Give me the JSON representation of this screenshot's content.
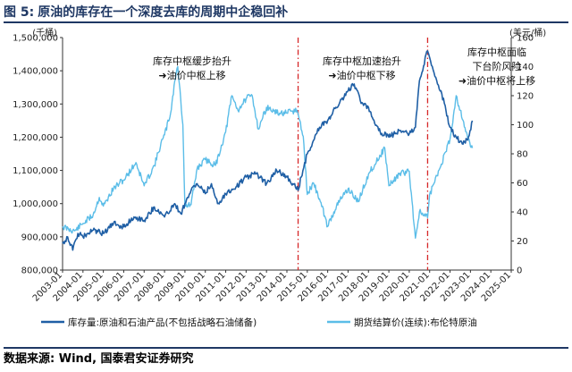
{
  "figure": {
    "number_label": "图 5:",
    "title": "原油的库存在一个深度去库的周期中企稳回补",
    "source": "数据来源: Wind, 国泰君安证券研究"
  },
  "chart_data": {
    "type": "line",
    "title": "原油的库存在一个深度去库的周期中企稳回补",
    "left_unit": "(千桶)",
    "right_unit": "(美元/桶)",
    "left_axis": {
      "ylim": [
        800000,
        1500000
      ],
      "ticks": [
        "800,000",
        "900,000",
        "1,000,000",
        "1,100,000",
        "1,200,000",
        "1,300,000",
        "1,400,000",
        "1,500,000"
      ],
      "tick_values": [
        800000,
        900000,
        1000000,
        1100000,
        1200000,
        1300000,
        1400000,
        1500000
      ]
    },
    "right_axis": {
      "ylim": [
        0,
        160
      ],
      "ticks": [
        "0",
        "20",
        "40",
        "60",
        "80",
        "100",
        "120",
        "140",
        "160"
      ],
      "tick_values": [
        0,
        20,
        40,
        60,
        80,
        100,
        120,
        140,
        160
      ]
    },
    "x_axis": {
      "xlim": [
        2003.0,
        2025.0
      ],
      "ticks": [
        "2003-01",
        "2004-01",
        "2005-01",
        "2006-01",
        "2007-01",
        "2008-01",
        "2009-01",
        "2010-01",
        "2011-01",
        "2012-01",
        "2013-01",
        "2014-01",
        "2015-01",
        "2016-01",
        "2017-01",
        "2018-01",
        "2019-01",
        "2020-01",
        "2021-01",
        "2022-01",
        "2023-01",
        "2024-01",
        "2025-01"
      ]
    },
    "grid": false,
    "legend_placement": "bottom",
    "colors": {
      "inventory": "#1f5fa5",
      "price": "#5bbde8",
      "divider": "#d62728"
    },
    "series": [
      {
        "name": "库存量:原油和石油产品(不包括战略石油储备)",
        "axis": "left",
        "x": [
          2003.0,
          2003.25,
          2003.5,
          2003.75,
          2004.0,
          2004.5,
          2005.0,
          2005.5,
          2006.0,
          2006.5,
          2007.0,
          2007.5,
          2008.0,
          2008.5,
          2008.8,
          2009.0,
          2009.3,
          2009.6,
          2010.0,
          2010.3,
          2010.6,
          2011.0,
          2011.5,
          2012.0,
          2012.5,
          2013.0,
          2013.5,
          2014.0,
          2014.3,
          2014.55,
          2014.7,
          2015.0,
          2015.3,
          2015.6,
          2016.0,
          2016.4,
          2016.8,
          2017.0,
          2017.3,
          2017.6,
          2018.0,
          2018.5,
          2019.0,
          2019.5,
          2020.0,
          2020.3,
          2020.5,
          2020.9,
          2021.0,
          2021.3,
          2021.6,
          2021.8,
          2022.0,
          2022.3,
          2022.6,
          2022.9,
          2023.1
        ],
        "values": [
          880000,
          900000,
          860000,
          910000,
          900000,
          920000,
          910000,
          940000,
          930000,
          960000,
          950000,
          990000,
          960000,
          1000000,
          970000,
          1000000,
          1040000,
          1060000,
          1030000,
          1060000,
          1000000,
          1030000,
          1050000,
          1080000,
          1090000,
          1060000,
          1100000,
          1080000,
          1060000,
          1040000,
          1080000,
          1150000,
          1190000,
          1230000,
          1250000,
          1290000,
          1320000,
          1340000,
          1360000,
          1310000,
          1290000,
          1220000,
          1200000,
          1220000,
          1210000,
          1230000,
          1370000,
          1460000,
          1440000,
          1380000,
          1330000,
          1280000,
          1230000,
          1200000,
          1180000,
          1200000,
          1250000
        ]
      },
      {
        "name": "期货结算价(连续):布伦特原油",
        "axis": "right",
        "x": [
          2003.0,
          2003.3,
          2003.6,
          2004.0,
          2004.5,
          2004.8,
          2005.0,
          2005.5,
          2005.8,
          2006.0,
          2006.6,
          2007.0,
          2007.5,
          2007.9,
          2008.0,
          2008.3,
          2008.5,
          2008.65,
          2008.9,
          2009.0,
          2009.3,
          2009.6,
          2010.0,
          2010.5,
          2011.0,
          2011.3,
          2011.6,
          2012.0,
          2012.3,
          2012.6,
          2013.0,
          2013.5,
          2014.0,
          2014.5,
          2014.8,
          2015.0,
          2015.3,
          2015.6,
          2016.0,
          2016.3,
          2016.6,
          2017.0,
          2017.5,
          2018.0,
          2018.8,
          2019.0,
          2019.5,
          2020.0,
          2020.3,
          2020.5,
          2020.9,
          2021.0,
          2021.5,
          2022.0,
          2022.3,
          2022.5,
          2022.8,
          2023.0,
          2023.1
        ],
        "values": [
          30,
          28,
          27,
          32,
          38,
          50,
          44,
          56,
          60,
          62,
          74,
          58,
          72,
          90,
          93,
          108,
          130,
          140,
          100,
          44,
          45,
          70,
          76,
          72,
          95,
          120,
          110,
          118,
          120,
          97,
          112,
          108,
          108,
          110,
          92,
          52,
          60,
          49,
          30,
          40,
          48,
          56,
          47,
          66,
          84,
          58,
          66,
          68,
          22,
          40,
          36,
          52,
          70,
          90,
          120,
          110,
          95,
          85,
          84
        ]
      }
    ],
    "annotations": [
      {
        "lines": [
          "库存中枢缓步抬升",
          "➜油价中枢上移"
        ]
      },
      {
        "lines": [
          "库存中枢加速抬升",
          "➜油价中枢下移"
        ]
      },
      {
        "lines": [
          "库存中枢面临",
          "下台阶风险",
          "➜油价中枢将上移"
        ]
      }
    ],
    "dividers_x": [
      2014.55,
      2020.9
    ]
  }
}
